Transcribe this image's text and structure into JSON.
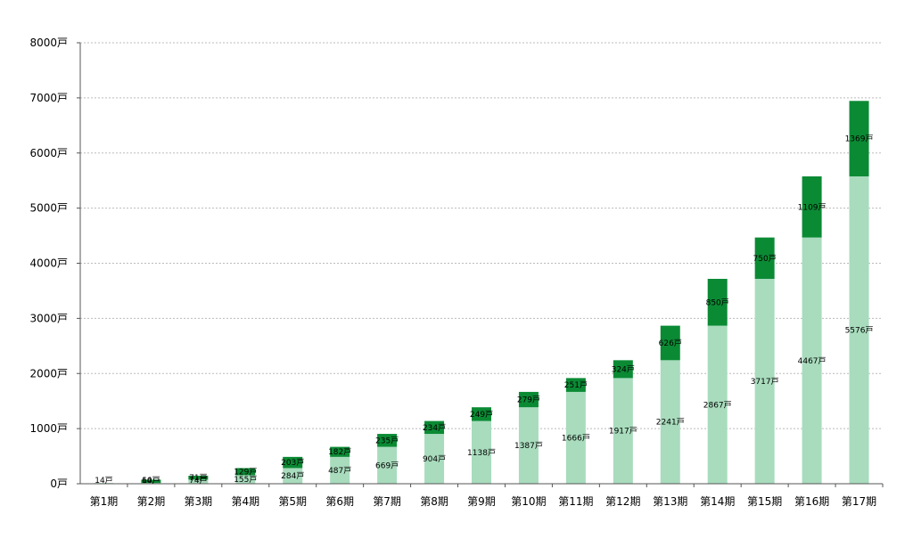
{
  "chart_data": {
    "type": "bar",
    "stacked": true,
    "categories": [
      "第1期",
      "第2期",
      "第3期",
      "第4期",
      "第5期",
      "第6期",
      "第7期",
      "第8期",
      "第9期",
      "第10期",
      "第11期",
      "第12期",
      "第13期",
      "第14期",
      "第15期",
      "第16期",
      "第17期"
    ],
    "series": [
      {
        "values": [
          14,
          14,
          74,
          155,
          284,
          487,
          669,
          904,
          1138,
          1387,
          1666,
          1917,
          2241,
          2867,
          3717,
          4467,
          5576
        ],
        "labels": [
          "14戸",
          "14戸",
          "74戸",
          "155戸",
          "284戸",
          "487戸",
          "669戸",
          "904戸",
          "1138戸",
          "1387戸",
          "1666戸",
          "1917戸",
          "2241戸",
          "2867戸",
          "3717戸",
          "4467戸",
          "5576戸"
        ],
        "color": "#a8dcbd"
      },
      {
        "values": [
          0,
          60,
          71,
          129,
          203,
          182,
          235,
          234,
          249,
          279,
          251,
          324,
          626,
          850,
          750,
          1109,
          1369
        ],
        "labels": [
          "",
          "60戸",
          "71戸",
          "129戸",
          "203戸",
          "182戸",
          "235戸",
          "234戸",
          "249戸",
          "279戸",
          "251戸",
          "324戸",
          "626戸",
          "850戸",
          "750戸",
          "1109戸",
          "1369戸"
        ],
        "color": "#0b8a34"
      }
    ],
    "yticks": [
      "0戸",
      "1000戸",
      "2000戸",
      "3000戸",
      "4000戸",
      "5000戸",
      "6000戸",
      "7000戸",
      "8000戸"
    ],
    "ylim": [
      0,
      8000
    ],
    "grid": true,
    "legend": "none"
  }
}
